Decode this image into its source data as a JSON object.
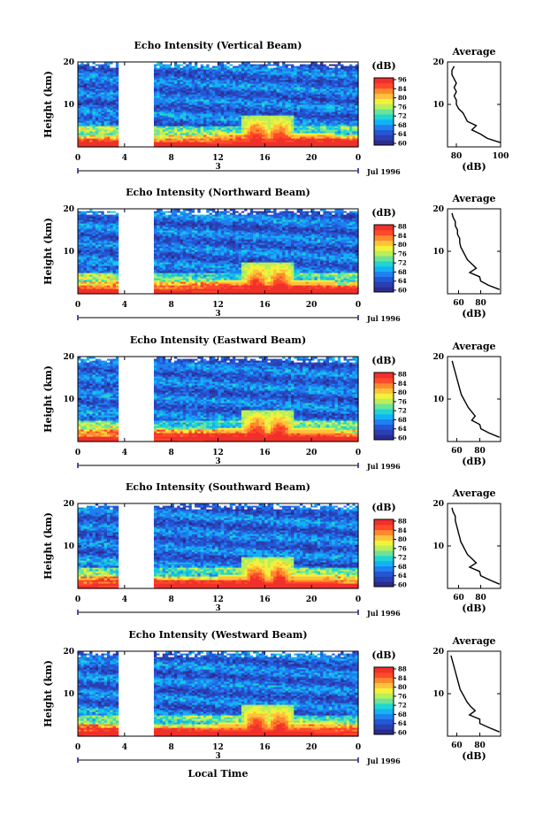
{
  "figure": {
    "xlabel": "Local Time",
    "date_label": "Jul 1996",
    "day_marker": "3",
    "colorbar_unit": "(dB)",
    "avg_title": "Average",
    "avg_xlabel": "(dB)",
    "ylabel": "Height (km)"
  },
  "colormap": [
    "#2b2b8f",
    "#2a3fb0",
    "#2457d6",
    "#1f80f0",
    "#13b2f5",
    "#1fd6d0",
    "#6ce39a",
    "#b9ef5a",
    "#f2f23a",
    "#ffc23a",
    "#ff8a2e",
    "#ff4a2a",
    "#f0302a"
  ],
  "chart_data": [
    {
      "type": "heatmap",
      "title": "Echo Intensity (Vertical Beam)",
      "x_ticks": [
        "0",
        "4",
        "8",
        "12",
        "16",
        "20",
        "0"
      ],
      "xlim": [
        0,
        24
      ],
      "y_ticks": [
        "20",
        "10"
      ],
      "ylim": [
        0,
        20
      ],
      "data_gap": [
        3.5,
        6.5
      ],
      "colorbar_ticks": [
        "96",
        "84",
        "80",
        "76",
        "72",
        "68",
        "64",
        "60"
      ],
      "avg": {
        "x_ticks": [
          "80",
          "100"
        ],
        "xlim": [
          76,
          100
        ],
        "y_ticks": [
          "20",
          "10"
        ],
        "profile": {
          "height_km": [
            1,
            2,
            3,
            4,
            5,
            6,
            7,
            8,
            9,
            10,
            11,
            12,
            13,
            14,
            15,
            16,
            17,
            18,
            19
          ],
          "db": [
            100,
            94,
            91,
            87,
            89,
            85,
            84,
            83,
            81,
            80,
            80,
            79,
            80,
            79,
            80,
            79,
            78,
            78,
            79
          ]
        }
      }
    },
    {
      "type": "heatmap",
      "title": "Echo Intensity (Northward Beam)",
      "x_ticks": [
        "0",
        "4",
        "8",
        "12",
        "16",
        "20",
        "0"
      ],
      "xlim": [
        0,
        24
      ],
      "y_ticks": [
        "20",
        "10"
      ],
      "ylim": [
        0,
        20
      ],
      "data_gap": [
        3.5,
        6.5
      ],
      "colorbar_ticks": [
        "88",
        "84",
        "80",
        "76",
        "72",
        "68",
        "64",
        "60"
      ],
      "avg": {
        "x_ticks": [
          "60",
          "80"
        ],
        "xlim": [
          50,
          98
        ],
        "y_ticks": [
          "20",
          "10"
        ],
        "profile": {
          "height_km": [
            1,
            2,
            3,
            4,
            5,
            6,
            7,
            8,
            9,
            10,
            11,
            12,
            13,
            14,
            15,
            16,
            17,
            18,
            19
          ],
          "db": [
            97,
            87,
            80,
            79,
            70,
            76,
            72,
            68,
            66,
            64,
            62,
            61,
            61,
            59,
            59,
            57,
            57,
            55,
            54
          ]
        }
      }
    },
    {
      "type": "heatmap",
      "title": "Echo Intensity (Eastward Beam)",
      "x_ticks": [
        "0",
        "4",
        "8",
        "12",
        "16",
        "20",
        "0"
      ],
      "xlim": [
        0,
        24
      ],
      "y_ticks": [
        "20",
        "10"
      ],
      "ylim": [
        0,
        20
      ],
      "data_gap": [
        3.5,
        6.5
      ],
      "colorbar_ticks": [
        "88",
        "84",
        "80",
        "76",
        "72",
        "68",
        "64",
        "60"
      ],
      "avg": {
        "x_ticks": [
          "60",
          "80"
        ],
        "xlim": [
          52,
          98
        ],
        "y_ticks": [
          "20",
          "10"
        ],
        "profile": {
          "height_km": [
            1,
            2,
            3,
            4,
            5,
            6,
            7,
            8,
            9,
            10,
            11,
            12,
            13,
            14,
            15,
            16,
            17,
            18,
            19
          ],
          "db": [
            97,
            88,
            81,
            80,
            73,
            76,
            73,
            70,
            68,
            66,
            64,
            63,
            62,
            61,
            60,
            59,
            58,
            57,
            56
          ]
        }
      }
    },
    {
      "type": "heatmap",
      "title": "Echo Intensity (Southward Beam)",
      "x_ticks": [
        "0",
        "4",
        "8",
        "12",
        "16",
        "20",
        "0"
      ],
      "xlim": [
        0,
        24
      ],
      "y_ticks": [
        "20",
        "10"
      ],
      "ylim": [
        0,
        20
      ],
      "data_gap": [
        3.5,
        6.5
      ],
      "colorbar_ticks": [
        "88",
        "84",
        "80",
        "76",
        "72",
        "68",
        "64",
        "60"
      ],
      "avg": {
        "x_ticks": [
          "60",
          "80"
        ],
        "xlim": [
          50,
          98
        ],
        "y_ticks": [
          "20",
          "10"
        ],
        "profile": {
          "height_km": [
            1,
            2,
            3,
            4,
            5,
            6,
            7,
            8,
            9,
            10,
            11,
            12,
            13,
            14,
            15,
            16,
            17,
            18,
            19
          ],
          "db": [
            97,
            88,
            80,
            79,
            70,
            76,
            72,
            68,
            66,
            64,
            62,
            61,
            60,
            59,
            58,
            57,
            57,
            55,
            54
          ]
        }
      }
    },
    {
      "type": "heatmap",
      "title": "Echo Intensity (Westward Beam)",
      "x_ticks": [
        "0",
        "4",
        "8",
        "12",
        "16",
        "20",
        "0"
      ],
      "xlim": [
        0,
        24
      ],
      "y_ticks": [
        "20",
        "10"
      ],
      "ylim": [
        0,
        20
      ],
      "data_gap": [
        3.5,
        6.5
      ],
      "colorbar_ticks": [
        "88",
        "84",
        "80",
        "76",
        "72",
        "68",
        "64",
        "60"
      ],
      "avg": {
        "x_ticks": [
          "60",
          "80"
        ],
        "xlim": [
          52,
          98
        ],
        "y_ticks": [
          "20",
          "10"
        ],
        "profile": {
          "height_km": [
            1,
            2,
            3,
            4,
            5,
            6,
            7,
            8,
            9,
            10,
            11,
            12,
            13,
            14,
            15,
            16,
            17,
            18,
            19
          ],
          "db": [
            97,
            88,
            80,
            80,
            71,
            76,
            72,
            69,
            67,
            65,
            63,
            62,
            61,
            60,
            59,
            58,
            57,
            56,
            55
          ]
        }
      }
    }
  ]
}
